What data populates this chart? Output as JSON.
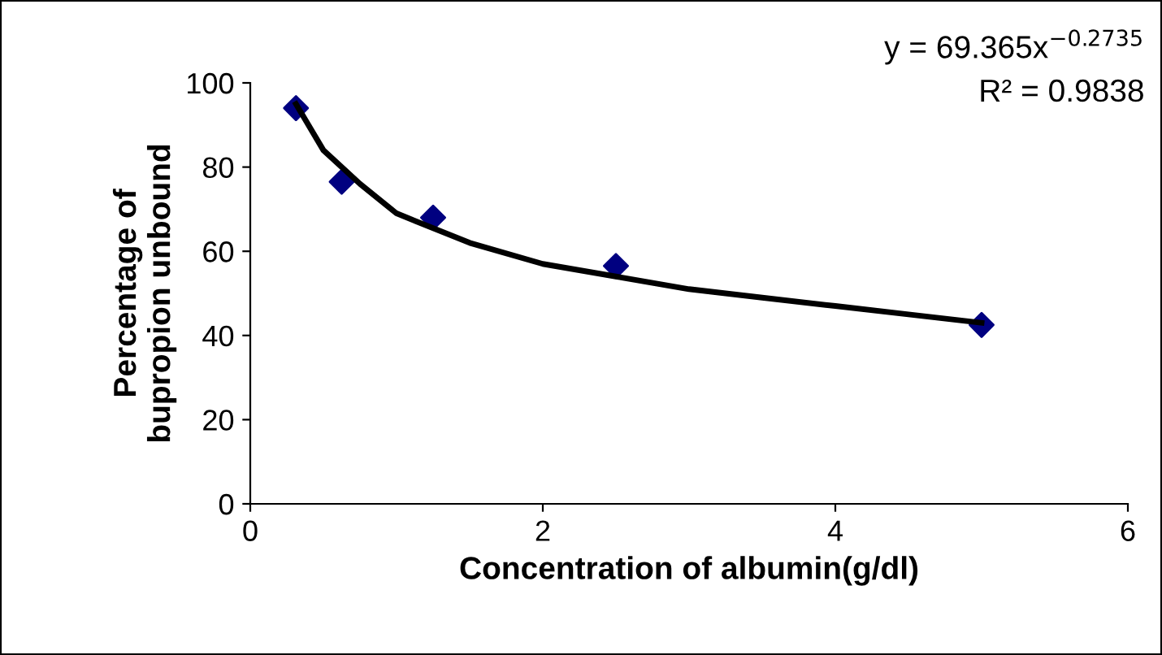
{
  "chart_data": {
    "type": "scatter",
    "xlabel": "Concentration of albumin(g/dl)",
    "ylabel": "Percentage of\nbupropion unbound",
    "series": [
      {
        "color": "#000080",
        "marker": "diamond",
        "x": [
          0.3125,
          0.625,
          1.25,
          2.5,
          5
        ],
        "values": [
          94,
          76.5,
          68,
          56.5,
          42.5
        ]
      },
      {
        "type": "line",
        "color": "#000000",
        "marker": "none",
        "line_style": "solid",
        "x": [
          0.3125,
          0.5,
          0.75,
          1,
          1.5,
          2,
          2.5,
          3,
          3.5,
          4,
          4.5,
          5
        ],
        "values": [
          95,
          84,
          76,
          69,
          62,
          57,
          54,
          51,
          49,
          47,
          45,
          43
        ]
      }
    ],
    "xlim": [
      0,
      6
    ],
    "xticks": [
      0,
      2,
      4,
      6
    ],
    "ylim": [
      0,
      100
    ],
    "yticks": [
      0,
      20,
      40,
      60,
      80,
      100
    ],
    "grid": false,
    "legend": false,
    "annotations": [
      "y = 69.365x$^{−0.2735}$",
      "R² = 0.9838"
    ]
  }
}
